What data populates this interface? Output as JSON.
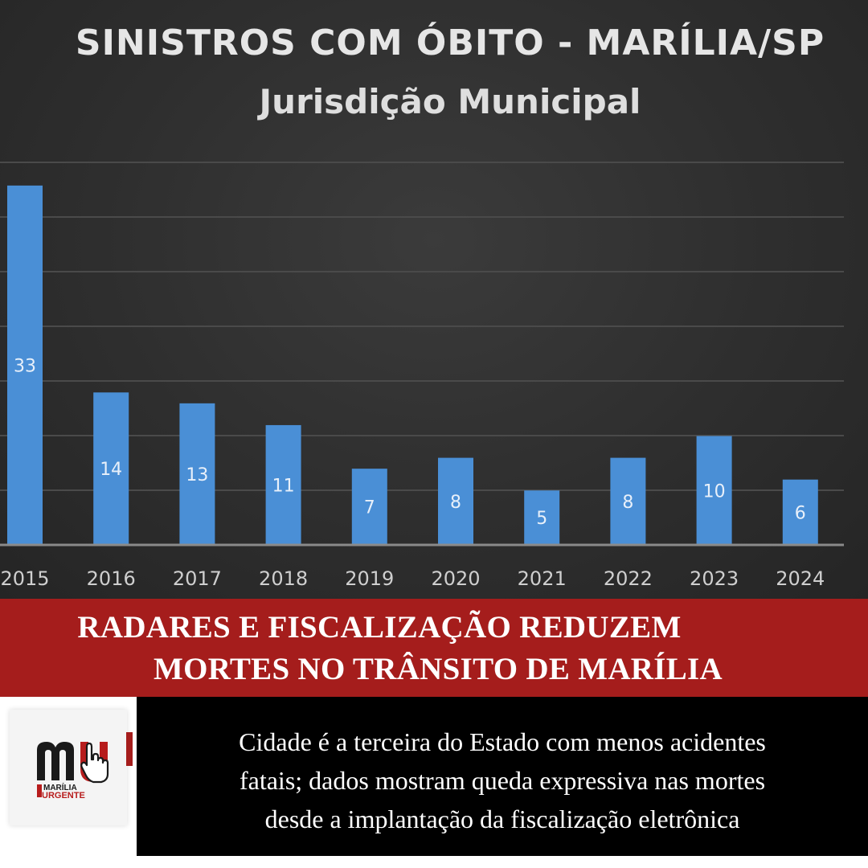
{
  "chart_data": {
    "type": "bar",
    "title": "SINISTROS COM ÓBITO - MARÍLIA/SP",
    "subtitle": "Jurisdição Municipal",
    "categories": [
      "2015",
      "2016",
      "2017",
      "2018",
      "2019",
      "2020",
      "2021",
      "2022",
      "2023",
      "2024"
    ],
    "values": [
      33,
      14,
      13,
      11,
      7,
      8,
      5,
      8,
      10,
      6
    ],
    "data_labels": [
      "33",
      "14",
      "13",
      "11",
      "7",
      "8",
      "5",
      "8",
      "10",
      "6"
    ],
    "ylim": [
      0,
      35
    ],
    "grid": true,
    "bar_color": "#4a8fd6",
    "background_color": "#2e2e2e"
  },
  "headline": {
    "line1": "RADARES E FISCALIZAÇÃO REDUZEM",
    "line2": "MORTES NO TRÂNSITO DE MARÍLIA",
    "background_color": "#a51d1c"
  },
  "summary": {
    "line1": "Cidade é a terceira do Estado com menos acidentes",
    "line2": "fatais; dados mostram queda expressiva nas mortes",
    "line3": "desde a implantação da fiscalização eletrônica"
  },
  "logo": {
    "icon": "marilia-urgente-logo",
    "text_line1": "MARÍLIA",
    "text_line2": "URGENTE"
  }
}
